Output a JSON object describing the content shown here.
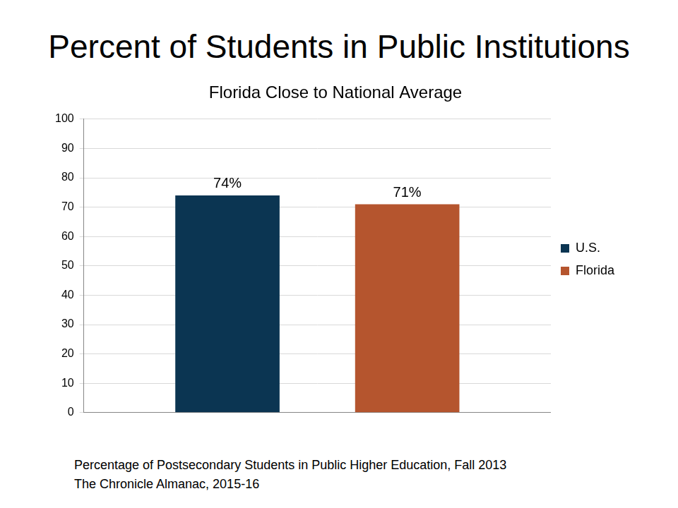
{
  "chart_data": {
    "type": "bar",
    "title": "Percent of Students in Public Institutions",
    "subtitle": "Florida Close to National Average",
    "categories": [
      null
    ],
    "series": [
      {
        "name": "U.S.",
        "color": "#0b3552",
        "values": [
          74
        ],
        "value_labels": [
          "74%"
        ]
      },
      {
        "name": "Florida",
        "color": "#b5552e",
        "values": [
          71
        ],
        "value_labels": [
          "71%"
        ]
      }
    ],
    "ylim": [
      0,
      100
    ],
    "yticks": [
      0,
      10,
      20,
      30,
      40,
      50,
      60,
      70,
      80,
      90,
      100
    ],
    "grid": true,
    "legend": "right",
    "data_labels": true,
    "footnote": [
      "Percentage of Postsecondary Students in Public Higher Education, Fall 2013",
      "The Chronicle Almanac, 2015-16"
    ]
  }
}
